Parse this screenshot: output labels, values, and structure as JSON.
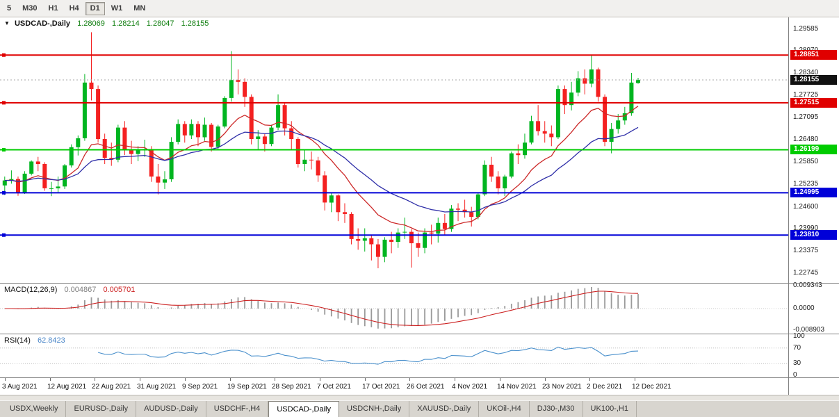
{
  "toolbar": {
    "timeframes": [
      {
        "label": "5",
        "active": false
      },
      {
        "label": "M30",
        "active": false
      },
      {
        "label": "H1",
        "active": false
      },
      {
        "label": "H4",
        "active": false
      },
      {
        "label": "D1",
        "active": true
      },
      {
        "label": "W1",
        "active": false
      },
      {
        "label": "MN",
        "active": false
      }
    ]
  },
  "chart_header": {
    "dropdown_icon": "▼",
    "symbol": "USDCAD-,Daily",
    "open": "1.28069",
    "high": "1.28214",
    "low": "1.28047",
    "close": "1.28155"
  },
  "macd": {
    "name": "MACD",
    "params": "(12,26,9)",
    "value_main": "0.004867",
    "value_signal": "0.005701",
    "axis_labels": [
      "0.009343",
      "0.0000",
      "-0.008903"
    ],
    "fast": 12,
    "slow": 26,
    "signal_period": 9
  },
  "rsi": {
    "name": "RSI",
    "params": "(14)",
    "value": "62.8423",
    "axis_labels": [
      "100",
      "70",
      "30",
      "0"
    ],
    "levels": [
      70,
      30
    ],
    "period": 14
  },
  "tabs": [
    {
      "label": "USDX,Weekly",
      "active": false
    },
    {
      "label": "EURUSD-,Daily",
      "active": false
    },
    {
      "label": "AUDUSD-,Daily",
      "active": false
    },
    {
      "label": "USDCHF-,H4",
      "active": false
    },
    {
      "label": "USDCAD-,Daily",
      "active": true
    },
    {
      "label": "USDCNH-,Daily",
      "active": false
    },
    {
      "label": "XAUUSD-,Daily",
      "active": false
    },
    {
      "label": "UKOil-,H4",
      "active": false
    },
    {
      "label": "DJ30-,M30",
      "active": false
    },
    {
      "label": "UK100-,H1",
      "active": false
    }
  ],
  "chart_data": {
    "type": "candlestick",
    "symbol": "USDCAD-",
    "period": "Daily",
    "colors": {
      "up": "#00b520",
      "down": "#f42020",
      "ma_fast": "#cc2828",
      "ma_slow": "#2f2fa8",
      "macd_hist": "#9a9a9a",
      "macd_signal": "#cc2020",
      "rsi": "#4a90cc",
      "last_price_bg": "#111111"
    },
    "price_axis_labels": [
      "1.29585",
      "1.28970",
      "1.28340",
      "1.27725",
      "1.27095",
      "1.26480",
      "1.25850",
      "1.25235",
      "1.24600",
      "1.23990",
      "1.23375",
      "1.22745"
    ],
    "x_axis_labels": [
      "3 Aug 2021",
      "12 Aug 2021",
      "22 Aug 2021",
      "31 Aug 2021",
      "9 Sep 2021",
      "19 Sep 2021",
      "28 Sep 2021",
      "7 Oct 2021",
      "17 Oct 2021",
      "26 Oct 2021",
      "4 Nov 2021",
      "14 Nov 2021",
      "23 Nov 2021",
      "2 Dec 2021",
      "12 Dec 2021"
    ],
    "levels": [
      {
        "price": 1.28851,
        "label": "1.28851",
        "color": "#e00000",
        "type": "resistance"
      },
      {
        "price": 1.27515,
        "label": "1.27515",
        "color": "#e00000",
        "type": "resistance"
      },
      {
        "price": 1.26199,
        "label": "1.26199",
        "color": "#00cc00",
        "type": "support"
      },
      {
        "price": 1.24995,
        "label": "1.24995",
        "color": "#0000d8",
        "type": "support"
      },
      {
        "price": 1.2381,
        "label": "1.23810",
        "color": "#0000d8",
        "type": "support"
      }
    ],
    "last_price": {
      "value": 1.28155,
      "label": "1.28155"
    },
    "moving_averages": [
      {
        "period": 12,
        "method": "ema",
        "color": "#cc2828"
      },
      {
        "period": 26,
        "method": "ema",
        "color": "#2f2fa8"
      }
    ],
    "candles": [
      [
        1.252,
        1.2545,
        1.2493,
        1.2534
      ],
      [
        1.2534,
        1.2562,
        1.2525,
        1.2538
      ],
      [
        1.2538,
        1.2545,
        1.2491,
        1.25
      ],
      [
        1.25,
        1.256,
        1.2496,
        1.2553
      ],
      [
        1.2553,
        1.259,
        1.2548,
        1.2587
      ],
      [
        1.2587,
        1.26,
        1.256,
        1.258
      ],
      [
        1.258,
        1.2585,
        1.2505,
        1.2512
      ],
      [
        1.2512,
        1.253,
        1.249,
        1.2512
      ],
      [
        1.2512,
        1.2545,
        1.25,
        1.2517
      ],
      [
        1.2517,
        1.258,
        1.251,
        1.2576
      ],
      [
        1.2576,
        1.2635,
        1.257,
        1.2627
      ],
      [
        1.2627,
        1.266,
        1.2604,
        1.2652
      ],
      [
        1.2652,
        1.2832,
        1.2645,
        1.2808
      ],
      [
        1.2808,
        1.2949,
        1.2758,
        1.279
      ],
      [
        1.279,
        1.28,
        1.264,
        1.265
      ],
      [
        1.265,
        1.2665,
        1.258,
        1.2597
      ],
      [
        1.2597,
        1.264,
        1.2575,
        1.2592
      ],
      [
        1.2592,
        1.269,
        1.2585,
        1.2682
      ],
      [
        1.2682,
        1.27,
        1.2605,
        1.262
      ],
      [
        1.262,
        1.2645,
        1.258,
        1.2608
      ],
      [
        1.2608,
        1.263,
        1.2588,
        1.262
      ],
      [
        1.262,
        1.2648,
        1.26,
        1.2622
      ],
      [
        1.2622,
        1.263,
        1.253,
        1.2545
      ],
      [
        1.2545,
        1.258,
        1.2495,
        1.2528
      ],
      [
        1.2528,
        1.256,
        1.251,
        1.2537
      ],
      [
        1.2537,
        1.2655,
        1.253,
        1.2642
      ],
      [
        1.2642,
        1.2705,
        1.2635,
        1.2692
      ],
      [
        1.2692,
        1.27,
        1.264,
        1.266
      ],
      [
        1.266,
        1.2705,
        1.265,
        1.2692
      ],
      [
        1.2692,
        1.27,
        1.263,
        1.2655
      ],
      [
        1.2655,
        1.271,
        1.2645,
        1.269
      ],
      [
        1.269,
        1.2695,
        1.2615,
        1.2628
      ],
      [
        1.2628,
        1.269,
        1.262,
        1.2685
      ],
      [
        1.2685,
        1.277,
        1.268,
        1.2765
      ],
      [
        1.2765,
        1.2896,
        1.2755,
        1.2815
      ],
      [
        1.2815,
        1.2845,
        1.2775,
        1.281
      ],
      [
        1.281,
        1.282,
        1.274,
        1.2768
      ],
      [
        1.2768,
        1.2775,
        1.2635,
        1.265
      ],
      [
        1.265,
        1.2675,
        1.262,
        1.2657
      ],
      [
        1.2657,
        1.2665,
        1.2615,
        1.2636
      ],
      [
        1.2636,
        1.269,
        1.263,
        1.2682
      ],
      [
        1.2682,
        1.2775,
        1.2675,
        1.2745
      ],
      [
        1.2745,
        1.275,
        1.266,
        1.268
      ],
      [
        1.268,
        1.27,
        1.262,
        1.265
      ],
      [
        1.265,
        1.2655,
        1.257,
        1.258
      ],
      [
        1.258,
        1.262,
        1.256,
        1.2592
      ],
      [
        1.2592,
        1.2615,
        1.2565,
        1.259
      ],
      [
        1.259,
        1.26,
        1.253,
        1.2548
      ],
      [
        1.2548,
        1.256,
        1.245,
        1.2472
      ],
      [
        1.2472,
        1.25,
        1.2445,
        1.2492
      ],
      [
        1.2492,
        1.2495,
        1.242,
        1.2445
      ],
      [
        1.2445,
        1.247,
        1.2415,
        1.244
      ],
      [
        1.244,
        1.2445,
        1.2355,
        1.237
      ],
      [
        1.237,
        1.24,
        1.234,
        1.2365
      ],
      [
        1.2365,
        1.24,
        1.2335,
        1.2372
      ],
      [
        1.2372,
        1.238,
        1.231,
        1.2355
      ],
      [
        1.2355,
        1.237,
        1.2288,
        1.232
      ],
      [
        1.232,
        1.2375,
        1.2305,
        1.2368
      ],
      [
        1.2368,
        1.239,
        1.233,
        1.2362
      ],
      [
        1.2362,
        1.24,
        1.2345,
        1.2388
      ],
      [
        1.2388,
        1.243,
        1.237,
        1.239
      ],
      [
        1.239,
        1.2398,
        1.229,
        1.2358
      ],
      [
        1.2358,
        1.2388,
        1.232,
        1.2345
      ],
      [
        1.2345,
        1.24,
        1.233,
        1.2388
      ],
      [
        1.2388,
        1.241,
        1.2355,
        1.2385
      ],
      [
        1.2385,
        1.243,
        1.236,
        1.2415
      ],
      [
        1.2415,
        1.244,
        1.238,
        1.2398
      ],
      [
        1.2398,
        1.2465,
        1.239,
        1.2455
      ],
      [
        1.2455,
        1.247,
        1.242,
        1.2452
      ],
      [
        1.2452,
        1.248,
        1.243,
        1.2445
      ],
      [
        1.2445,
        1.246,
        1.2405,
        1.2432
      ],
      [
        1.2432,
        1.25,
        1.2425,
        1.2495
      ],
      [
        1.2495,
        1.259,
        1.249,
        1.2578
      ],
      [
        1.2578,
        1.26,
        1.253,
        1.2545
      ],
      [
        1.2545,
        1.256,
        1.2495,
        1.2512
      ],
      [
        1.2512,
        1.255,
        1.249,
        1.2545
      ],
      [
        1.2545,
        1.2615,
        1.254,
        1.261
      ],
      [
        1.261,
        1.2635,
        1.258,
        1.2605
      ],
      [
        1.2605,
        1.2665,
        1.2595,
        1.264
      ],
      [
        1.264,
        1.2715,
        1.2635,
        1.27
      ],
      [
        1.27,
        1.2745,
        1.266,
        1.2672
      ],
      [
        1.2672,
        1.27,
        1.264,
        1.2665
      ],
      [
        1.2665,
        1.2688,
        1.263,
        1.2655
      ],
      [
        1.2655,
        1.28,
        1.265,
        1.279
      ],
      [
        1.279,
        1.28,
        1.272,
        1.2745
      ],
      [
        1.2745,
        1.281,
        1.273,
        1.278
      ],
      [
        1.278,
        1.284,
        1.277,
        1.282
      ],
      [
        1.282,
        1.2845,
        1.2775,
        1.2805
      ],
      [
        1.2805,
        1.2885,
        1.2795,
        1.2845
      ],
      [
        1.2845,
        1.285,
        1.2755,
        1.2768
      ],
      [
        1.2768,
        1.2775,
        1.263,
        1.2642
      ],
      [
        1.2642,
        1.2695,
        1.261,
        1.2678
      ],
      [
        1.2678,
        1.272,
        1.2665,
        1.2702
      ],
      [
        1.2702,
        1.274,
        1.269,
        1.2722
      ],
      [
        1.2722,
        1.2835,
        1.2715,
        1.2808
      ],
      [
        1.28069,
        1.28214,
        1.28047,
        1.28155
      ]
    ]
  }
}
